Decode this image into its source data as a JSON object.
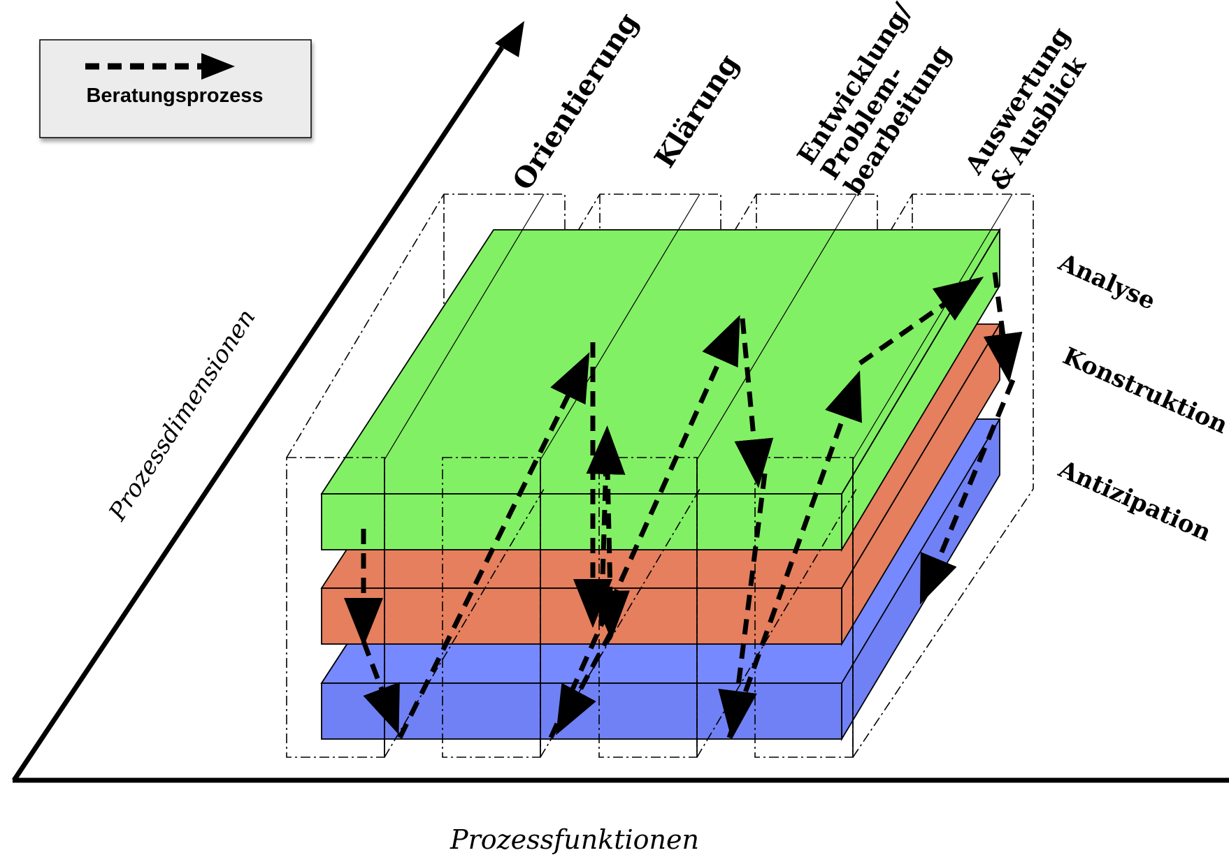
{
  "legend": {
    "label": "Beratungsprozess"
  },
  "axes": {
    "x_label": "Prozessfunktionen",
    "y_label": "Prozessdimensionen"
  },
  "phases": [
    {
      "lines": [
        "Orientierung"
      ]
    },
    {
      "lines": [
        "Klärung"
      ]
    },
    {
      "lines": [
        "Entwicklung/",
        "Problem-",
        "bearbeitung"
      ]
    },
    {
      "lines": [
        "Auswertung",
        "& Ausblick"
      ]
    }
  ],
  "layers": [
    {
      "label": "Analyse",
      "color": "#82f064"
    },
    {
      "label": "Konstruktion",
      "color": "#e57f5e"
    },
    {
      "label": "Antizipation",
      "color": "#7081f6"
    }
  ],
  "colors": {
    "legend_bg": "#ececec",
    "line": "#000000"
  }
}
